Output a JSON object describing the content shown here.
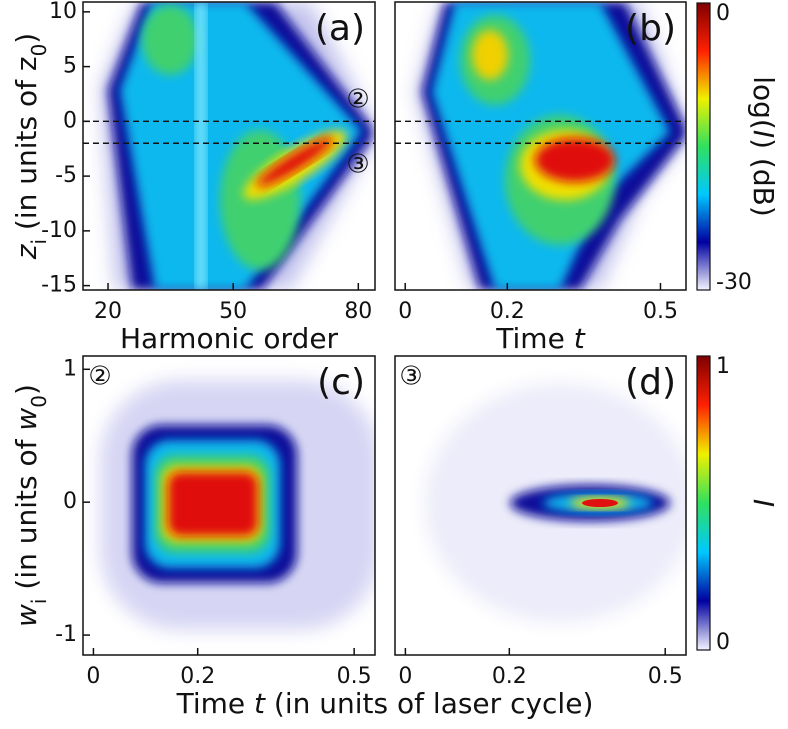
{
  "chart_data": [
    {
      "type": "heatmap",
      "label": "(a)",
      "annotations": [
        "②",
        "③"
      ],
      "xlim": [
        14,
        84
      ],
      "xticks": [
        20,
        50,
        80
      ],
      "ylim": [
        -15.4,
        10.9
      ],
      "yticks": [
        10,
        5,
        0,
        -5,
        -10,
        -15
      ],
      "hlines": [
        0,
        -2
      ],
      "xlabel_parts": [
        {
          "text": "Harmonic order",
          "style": "normal"
        }
      ],
      "ylabel_parts": [
        {
          "text": "z",
          "style": "italic"
        },
        {
          "text": "i",
          "style": "sub"
        },
        {
          "text": " (in units of z",
          "style": "normal"
        },
        {
          "text": "0",
          "style": "sub"
        },
        {
          "text": ")",
          "style": "normal"
        }
      ]
    },
    {
      "type": "heatmap",
      "label": "(b)",
      "xlim": [
        -0.02,
        0.55
      ],
      "xticks": [
        0,
        0.2,
        0.5
      ],
      "ylim": [
        -15.4,
        10.9
      ],
      "hlines": [
        0,
        -2
      ],
      "xlabel_parts": [
        {
          "text": "Time ",
          "style": "normal"
        },
        {
          "text": "t",
          "style": "italic"
        }
      ]
    },
    {
      "type": "heatmap",
      "label": "(c)",
      "annotations": [
        "②"
      ],
      "xlim": [
        -0.02,
        0.54
      ],
      "xticks": [
        0,
        0.2,
        0.5
      ],
      "ylim": [
        -1.15,
        1.1
      ],
      "yticks": [
        1,
        0,
        -1
      ],
      "xlabel_parts": [
        {
          "text": "Time ",
          "style": "normal"
        },
        {
          "text": "t",
          "style": "italic"
        },
        {
          "text": " (in units of laser cycle)",
          "style": "normal"
        }
      ],
      "ylabel_parts": [
        {
          "text": "w",
          "style": "italic"
        },
        {
          "text": "i",
          "style": "sub"
        },
        {
          "text": " (in units of ",
          "style": "normal"
        },
        {
          "text": "w",
          "style": "italic"
        },
        {
          "text": "0",
          "style": "sub"
        },
        {
          "text": ")",
          "style": "normal"
        }
      ]
    },
    {
      "type": "heatmap",
      "label": "(d)",
      "annotations": [
        "③"
      ],
      "xlim": [
        -0.02,
        0.54
      ],
      "xticks": [
        0,
        0.2,
        0.5
      ]
    },
    {
      "type": "colorbar",
      "lim": [
        -30,
        0
      ],
      "ticks": [
        0,
        -30
      ],
      "colors": [
        "#f4f4ff",
        "#0000a0",
        "#00c8ff",
        "#30e060",
        "#f0f000",
        "#ff2000",
        "#800000"
      ],
      "label_parts": [
        {
          "text": "log(",
          "style": "normal"
        },
        {
          "text": "I",
          "style": "italic"
        },
        {
          "text": ") (dB)",
          "style": "normal"
        }
      ]
    },
    {
      "type": "colorbar",
      "lim": [
        0,
        1
      ],
      "ticks": [
        1,
        0
      ],
      "colors": [
        "#f4f4ff",
        "#0000a0",
        "#00c8ff",
        "#30e060",
        "#f0f000",
        "#ff2000",
        "#800000"
      ],
      "label_parts": [
        {
          "text": "I",
          "style": "italic"
        }
      ]
    }
  ]
}
